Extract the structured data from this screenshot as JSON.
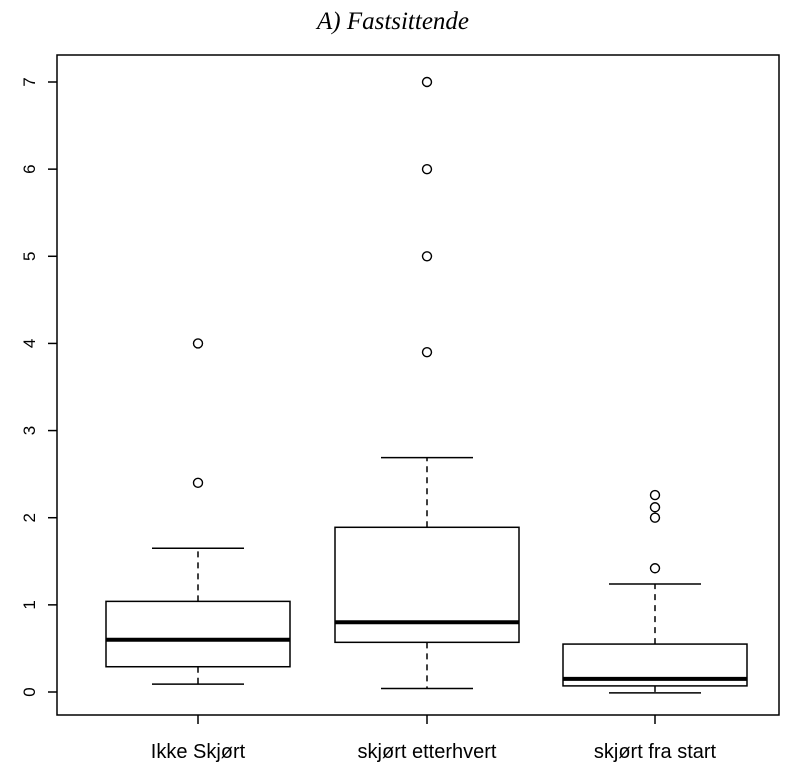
{
  "chart_data": {
    "type": "boxplot",
    "title": "A) Fastsittende",
    "xlabel": "",
    "ylabel": "",
    "ylim": [
      -0.25,
      7.35
    ],
    "yticks": [
      0,
      1,
      2,
      3,
      4,
      5,
      6,
      7
    ],
    "yticks_labels": [
      "0",
      "1",
      "2",
      "3",
      "4",
      "5",
      "6",
      "7"
    ],
    "grid": false,
    "categories": [
      "Ikke Skjørt",
      "skjørt etterhvert",
      "skjørt fra start"
    ],
    "boxes": [
      {
        "whisker_low": 0.09,
        "q1": 0.29,
        "median": 0.6,
        "q3": 1.04,
        "whisker_high": 1.65,
        "outliers": [
          2.4,
          4.0
        ]
      },
      {
        "whisker_low": 0.04,
        "q1": 0.57,
        "median": 0.8,
        "q3": 1.89,
        "whisker_high": 2.69,
        "outliers": [
          3.9,
          5.0,
          6.0,
          7.0
        ]
      },
      {
        "whisker_low": -0.01,
        "q1": 0.07,
        "median": 0.15,
        "q3": 0.55,
        "whisker_high": 1.24,
        "outliers": [
          1.42,
          2.0,
          2.12,
          2.26
        ]
      }
    ]
  }
}
